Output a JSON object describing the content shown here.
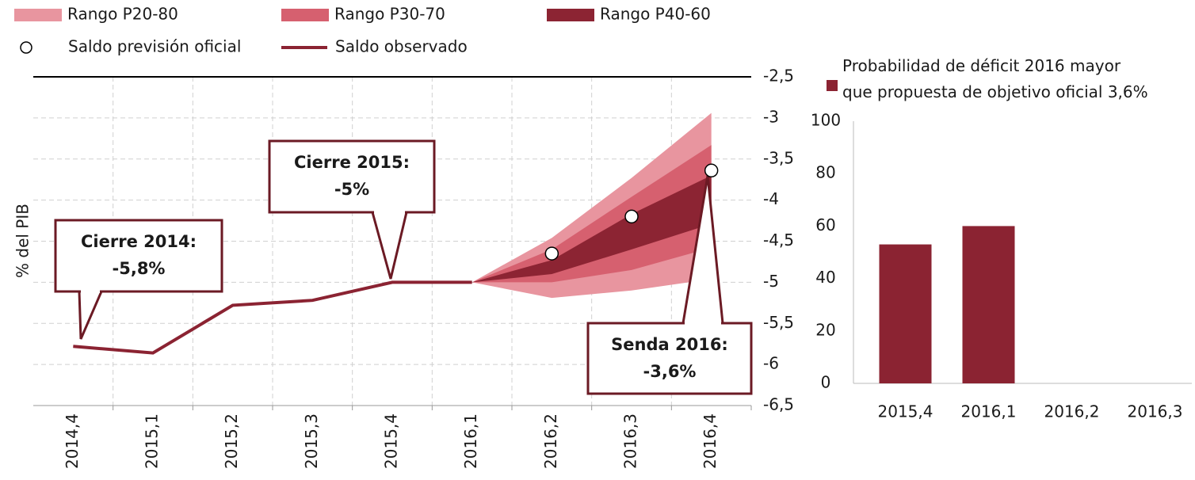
{
  "chart_data": [
    {
      "type": "line",
      "y_label": "% del PIB",
      "categories": [
        "2014,4",
        "2015,1",
        "2015,2",
        "2015,3",
        "2015,4",
        "2016,1",
        "2016,2",
        "2016,3",
        "2016,4"
      ],
      "ylim": [
        -6.5,
        -2.5
      ],
      "yticks": [
        {
          "value": -2.5,
          "label": "-2,5"
        },
        -3,
        {
          "value": -3.5,
          "label": "-3,5"
        },
        -4,
        {
          "value": -4.5,
          "label": "-4,5"
        },
        -5,
        {
          "value": -5.5,
          "label": "-5,5"
        },
        -6,
        {
          "value": -6.5,
          "label": "-6,5"
        }
      ],
      "grid": true,
      "bands": [
        {
          "name": "Rango P20-80",
          "color": "#e8959f",
          "low": [
            null,
            null,
            null,
            null,
            null,
            -5,
            -5.19,
            -5.1,
            -4.96
          ],
          "high": [
            null,
            null,
            null,
            null,
            null,
            -5,
            -4.46,
            -3.73,
            -2.94
          ]
        },
        {
          "name": "Rango P30-70",
          "color": "#d6606f",
          "low": [
            null,
            null,
            null,
            null,
            null,
            -5,
            -5.0,
            -4.85,
            -4.58
          ],
          "high": [
            null,
            null,
            null,
            null,
            null,
            -5,
            -4.6,
            -3.96,
            -3.33
          ]
        },
        {
          "name": "Rango P40-60",
          "color": "#8c2433",
          "low": [
            null,
            null,
            null,
            null,
            null,
            -5,
            -4.9,
            -4.6,
            -4.29
          ],
          "high": [
            null,
            null,
            null,
            null,
            null,
            -5,
            -4.73,
            -4.17,
            -3.7
          ]
        }
      ],
      "series": [
        {
          "name": "Saldo previsión oficial",
          "color": "#ffffff",
          "marker": "circle",
          "values": [
            null,
            null,
            null,
            null,
            null,
            null,
            -4.65,
            -4.2,
            -3.64
          ]
        },
        {
          "name": "Saldo observado",
          "color": "#8b2332",
          "values": [
            -5.78,
            -5.86,
            -5.28,
            -5.22,
            -5.0,
            -5.0,
            null,
            null,
            null
          ]
        }
      ],
      "annotations": [
        {
          "lines": [
            "Cierre 2014:",
            "-5,8%"
          ]
        },
        {
          "lines": [
            "Cierre 2015:",
            "-5%"
          ]
        },
        {
          "lines": [
            "Senda 2016:",
            "-3,6%"
          ]
        }
      ]
    },
    {
      "type": "bar",
      "legend": "Probabilidad de déficit 2016 mayor que propuesta de objetivo oficial 3,6%",
      "categories": [
        "2015,4",
        "2016,1",
        "2016,2",
        "2016,3"
      ],
      "values": [
        53,
        60,
        null,
        null
      ],
      "color": "#8b2332",
      "ylim": [
        0,
        100
      ],
      "yticks": [
        0,
        20,
        40,
        60,
        80,
        100
      ]
    }
  ]
}
